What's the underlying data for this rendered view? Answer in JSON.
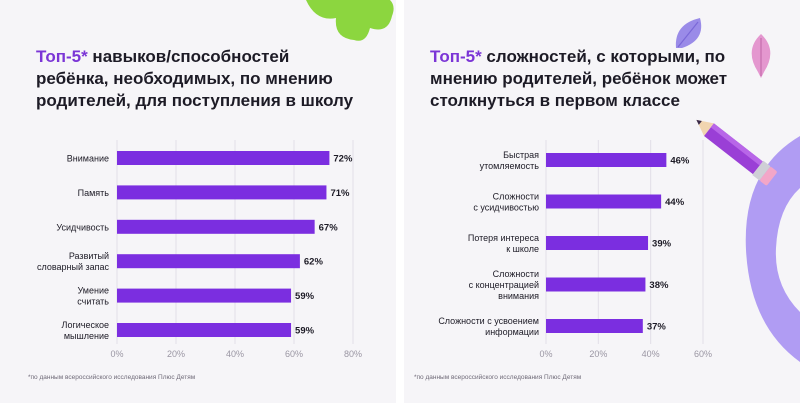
{
  "left": {
    "title_accent": "Топ-5*",
    "title_rest": " навыков/способностей ребёнка, необходимых, по мнению родителей, для поступления в школу",
    "footnote": "*по данным всероссийского исследования Плюс Детям"
  },
  "right": {
    "title_accent": "Топ-5*",
    "title_rest": " сложностей, с которыми, по мнению родителей, ребёнок может столкнуться в первом классе",
    "footnote": "*по данным всероссийского исследования Плюс Детям"
  },
  "chart_data": [
    {
      "type": "bar",
      "orientation": "horizontal",
      "categories": [
        [
          "Внимание"
        ],
        [
          "Память"
        ],
        [
          "Усидчивость"
        ],
        [
          "Развитый",
          "словарный запас"
        ],
        [
          "Умение",
          "считать"
        ],
        [
          "Логическое",
          "мышление"
        ]
      ],
      "values": [
        72,
        71,
        67,
        62,
        59,
        59
      ],
      "value_labels": [
        "72%",
        "71%",
        "67%",
        "62%",
        "59%",
        "59%"
      ],
      "xticks": [
        "0%",
        "20%",
        "40%",
        "60%",
        "80%"
      ],
      "xlim": [
        0,
        80
      ],
      "bar_color": "#7b2ee0"
    },
    {
      "type": "bar",
      "orientation": "horizontal",
      "categories": [
        [
          "Быстрая",
          "утомляемость"
        ],
        [
          "Сложности",
          "с усидчивостью"
        ],
        [
          "Потеря интереса",
          "к школе"
        ],
        [
          "Сложности",
          "с концентрацией",
          "внимания"
        ],
        [
          "Сложности с усвоением",
          "информации"
        ]
      ],
      "values": [
        46,
        44,
        39,
        38,
        37
      ],
      "value_labels": [
        "46%",
        "44%",
        "39%",
        "38%",
        "37%"
      ],
      "xticks": [
        "0%",
        "20%",
        "40%",
        "60%"
      ],
      "xlim": [
        0,
        60
      ],
      "bar_color": "#7b2ee0"
    }
  ]
}
